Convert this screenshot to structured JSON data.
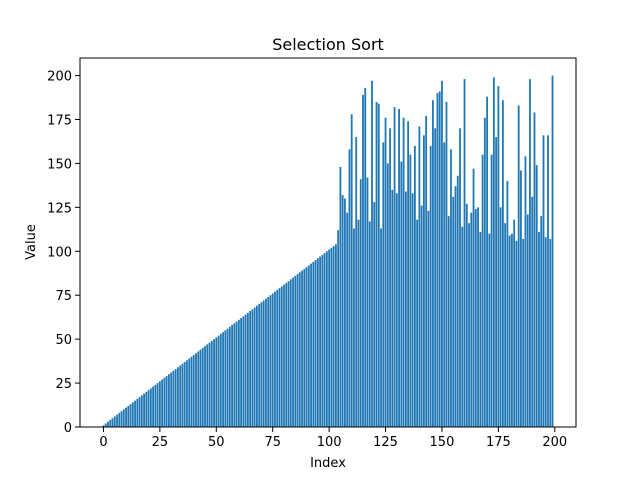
{
  "chart_data": {
    "type": "bar",
    "title": "Selection Sort",
    "xlabel": "Index",
    "ylabel": "Value",
    "color": "#1f77b4",
    "values": [
      1,
      2,
      3,
      4,
      5,
      6,
      7,
      8,
      9,
      10,
      11,
      12,
      13,
      14,
      15,
      16,
      17,
      18,
      19,
      20,
      21,
      22,
      23,
      24,
      25,
      26,
      27,
      28,
      29,
      30,
      31,
      32,
      33,
      34,
      35,
      36,
      37,
      38,
      39,
      40,
      41,
      42,
      43,
      44,
      45,
      46,
      47,
      48,
      49,
      50,
      51,
      52,
      53,
      54,
      55,
      56,
      57,
      58,
      59,
      60,
      61,
      62,
      63,
      64,
      65,
      66,
      67,
      68,
      69,
      70,
      71,
      72,
      73,
      74,
      75,
      76,
      77,
      78,
      79,
      80,
      81,
      82,
      83,
      84,
      85,
      86,
      87,
      88,
      89,
      90,
      91,
      92,
      93,
      94,
      95,
      96,
      97,
      98,
      99,
      100,
      101,
      102,
      103,
      104,
      112,
      148,
      132,
      130,
      122,
      158,
      178,
      113,
      165,
      118,
      141,
      189,
      193,
      142,
      117,
      197,
      128,
      185,
      184,
      113,
      162,
      176,
      150,
      170,
      135,
      182,
      133,
      181,
      151,
      176,
      134,
      174,
      155,
      133,
      160,
      118,
      171,
      126,
      166,
      177,
      123,
      160,
      186,
      170,
      190,
      191,
      197,
      162,
      185,
      120,
      158,
      131,
      137,
      143,
      170,
      114,
      198,
      127,
      116,
      122,
      147,
      124,
      125,
      111,
      155,
      176,
      188,
      110,
      155,
      199,
      165,
      194,
      125,
      186,
      116,
      140,
      109,
      110,
      118,
      106,
      183,
      146,
      107,
      154,
      121,
      198,
      131,
      179,
      149,
      111,
      120,
      166,
      108,
      166,
      107,
      200
    ],
    "xlim": [
      -10.4,
      209.4
    ],
    "xticks": [
      0,
      25,
      50,
      75,
      100,
      125,
      150,
      175,
      200
    ],
    "ylim": [
      0,
      210
    ],
    "yticks": [
      0,
      25,
      50,
      75,
      100,
      125,
      150,
      175,
      200
    ]
  }
}
